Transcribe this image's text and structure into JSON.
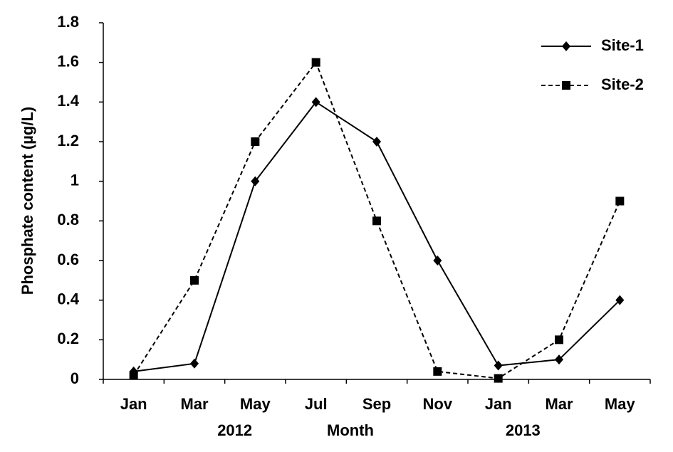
{
  "chart_data": {
    "type": "line",
    "y_label": "Phosphate content (µg/L)",
    "x_label": "Month",
    "year_labels": [
      "2012",
      "2013"
    ],
    "categories": [
      "Jan",
      "Mar",
      "May",
      "Jul",
      "Sep",
      "Nov",
      "Jan",
      "Mar",
      "May"
    ],
    "series": [
      {
        "name": "Site-1",
        "color": "#000000",
        "line_style": "solid",
        "marker": "diamond",
        "values": [
          0.04,
          0.08,
          1.0,
          1.4,
          1.2,
          0.6,
          0.07,
          0.1,
          0.4
        ]
      },
      {
        "name": "Site-2",
        "color": "#000000",
        "line_style": "dashed",
        "marker": "square",
        "values": [
          0.02,
          0.5,
          1.2,
          1.6,
          0.8,
          0.04,
          0.005,
          0.2,
          0.9
        ]
      }
    ],
    "ylim": [
      0,
      1.8
    ],
    "yticks": [
      0,
      0.2,
      0.4,
      0.6,
      0.8,
      1,
      1.2,
      1.4,
      1.6,
      1.8
    ],
    "grid": false,
    "legend": "top-right"
  }
}
